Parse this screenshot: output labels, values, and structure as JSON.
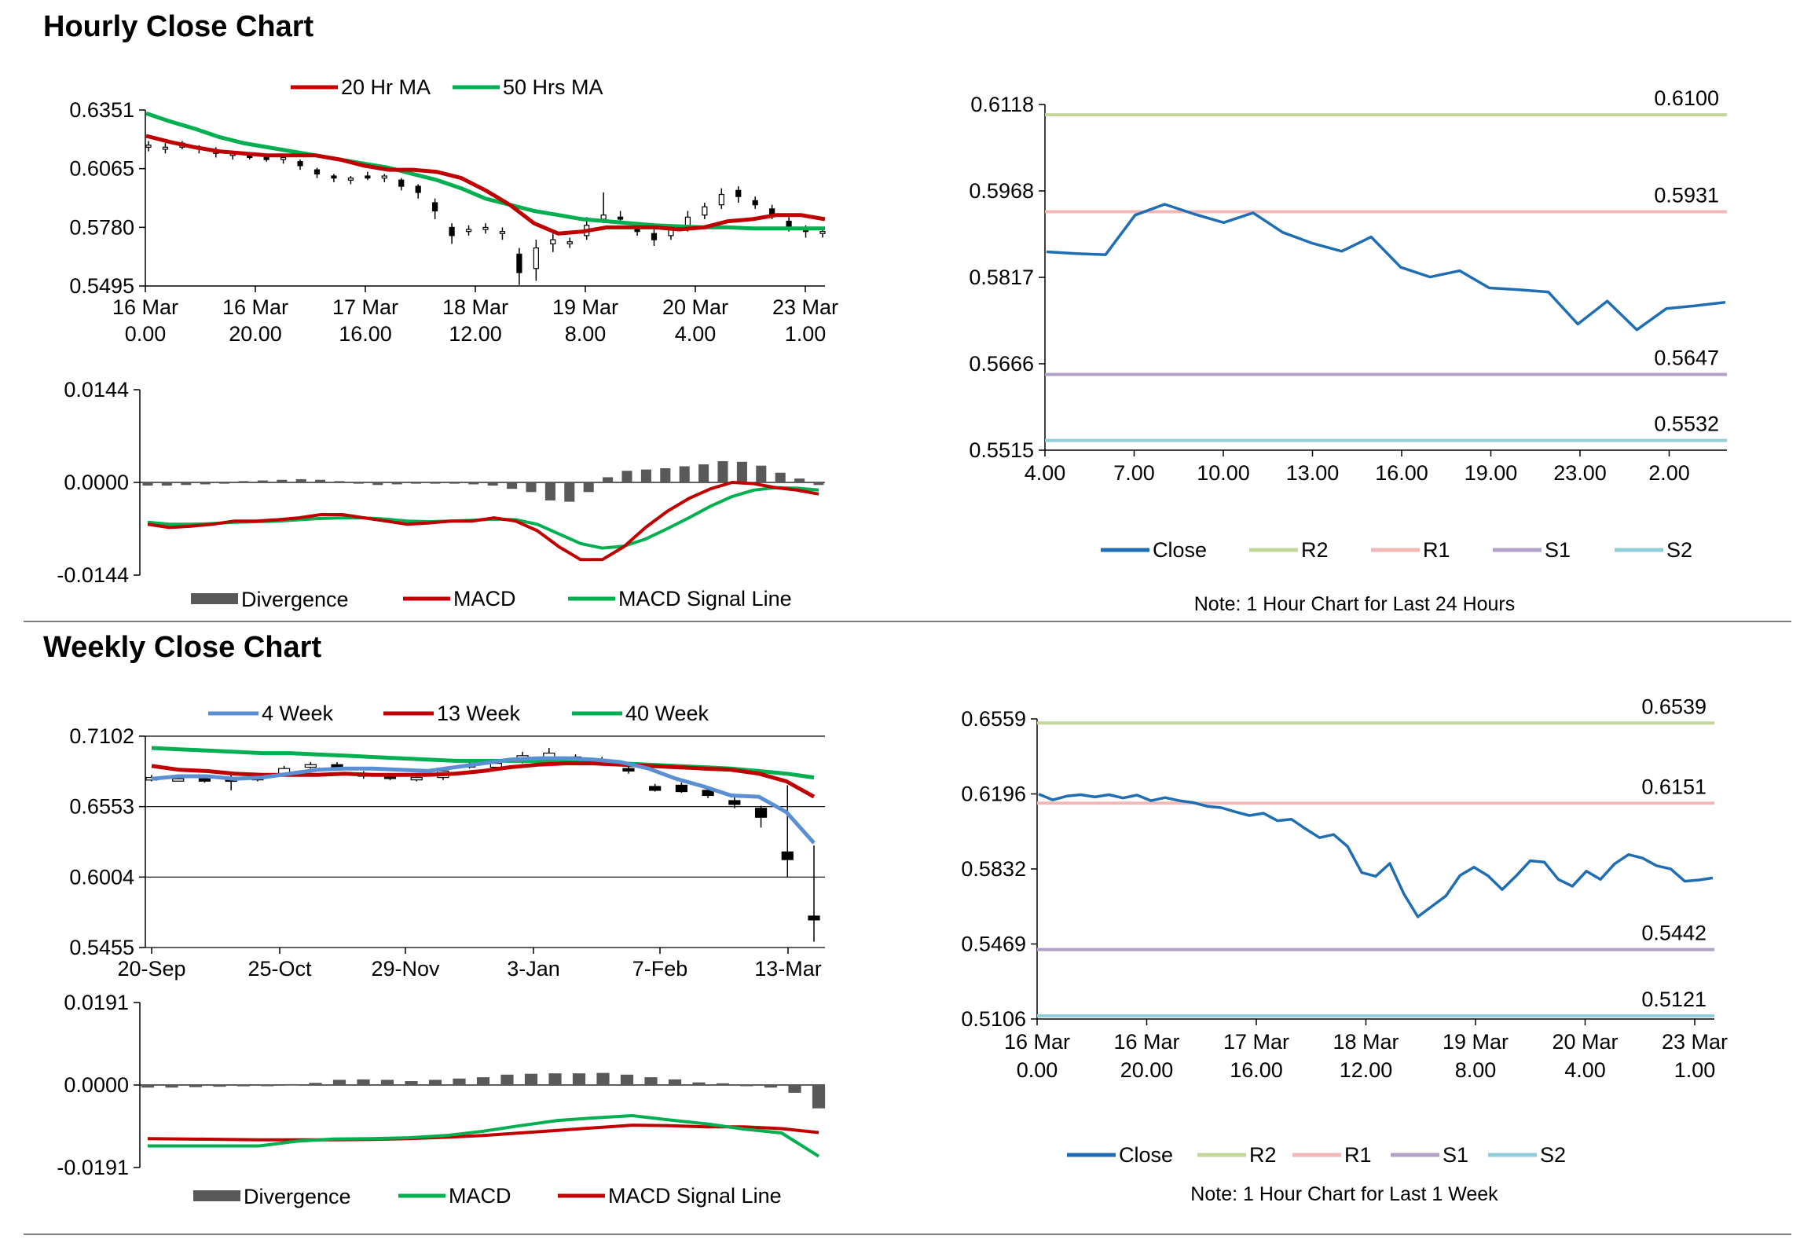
{
  "page": {
    "hourly_title": "Hourly Close Chart",
    "weekly_title": "Weekly Close Chart"
  },
  "chart_data": [
    {
      "id": "hourly_price",
      "type": "candlestick",
      "title": "Hourly Close Chart",
      "ylim": [
        0.5495,
        0.6351
      ],
      "yticks": [
        "0.6351",
        "0.6065",
        "0.5780",
        "0.5495"
      ],
      "xticks": [
        [
          "16 Mar",
          "0.00"
        ],
        [
          "16 Mar",
          "20.00"
        ],
        [
          "17 Mar",
          "16.00"
        ],
        [
          "18 Mar",
          "12.00"
        ],
        [
          "19 Mar",
          "8.00"
        ],
        [
          "20 Mar",
          "4.00"
        ],
        [
          "23 Mar",
          "1.00"
        ]
      ],
      "legend": [
        "20 Hr MA",
        "50 Hrs MA"
      ],
      "colors": {
        "ma20": "#c00000",
        "ma50": "#00b050",
        "candle": "#000000"
      },
      "ma20": [
        0.6225,
        0.6195,
        0.617,
        0.615,
        0.614,
        0.613,
        0.613,
        0.613,
        0.611,
        0.608,
        0.606,
        0.606,
        0.605,
        0.602,
        0.596,
        0.589,
        0.58,
        0.575,
        0.576,
        0.578,
        0.578,
        0.578,
        0.577,
        0.578,
        0.581,
        0.582,
        0.584,
        0.584,
        0.582
      ],
      "ma50": [
        0.6335,
        0.6295,
        0.626,
        0.622,
        0.619,
        0.617,
        0.615,
        0.613,
        0.611,
        0.609,
        0.607,
        0.604,
        0.601,
        0.597,
        0.592,
        0.589,
        0.586,
        0.584,
        0.582,
        0.581,
        0.58,
        0.579,
        0.5785,
        0.578,
        0.578,
        0.5775,
        0.5775,
        0.5775,
        0.5775
      ],
      "candles": [
        [
          0.617,
          0.618,
          0.62,
          0.615
        ],
        [
          0.616,
          0.617,
          0.619,
          0.614
        ],
        [
          0.617,
          0.619,
          0.62,
          0.616
        ],
        [
          0.616,
          0.617,
          0.618,
          0.614
        ],
        [
          0.614,
          0.615,
          0.617,
          0.612
        ],
        [
          0.613,
          0.614,
          0.615,
          0.611
        ],
        [
          0.613,
          0.612,
          0.614,
          0.611
        ],
        [
          0.612,
          0.611,
          0.613,
          0.61
        ],
        [
          0.611,
          0.612,
          0.613,
          0.609
        ],
        [
          0.61,
          0.608,
          0.611,
          0.606
        ],
        [
          0.606,
          0.604,
          0.607,
          0.602
        ],
        [
          0.603,
          0.602,
          0.604,
          0.6
        ],
        [
          0.601,
          0.602,
          0.603,
          0.599
        ],
        [
          0.603,
          0.602,
          0.605,
          0.601
        ],
        [
          0.602,
          0.603,
          0.604,
          0.6
        ],
        [
          0.601,
          0.598,
          0.602,
          0.596
        ],
        [
          0.598,
          0.595,
          0.599,
          0.592
        ],
        [
          0.59,
          0.586,
          0.592,
          0.582
        ],
        [
          0.578,
          0.574,
          0.58,
          0.57
        ],
        [
          0.576,
          0.577,
          0.579,
          0.574
        ],
        [
          0.577,
          0.578,
          0.58,
          0.575
        ],
        [
          0.575,
          0.576,
          0.578,
          0.572
        ],
        [
          0.565,
          0.556,
          0.568,
          0.55
        ],
        [
          0.558,
          0.568,
          0.572,
          0.552
        ],
        [
          0.57,
          0.572,
          0.575,
          0.566
        ],
        [
          0.57,
          0.571,
          0.573,
          0.568
        ],
        [
          0.574,
          0.579,
          0.583,
          0.572
        ],
        [
          0.582,
          0.584,
          0.595,
          0.58
        ],
        [
          0.583,
          0.582,
          0.586,
          0.58
        ],
        [
          0.578,
          0.576,
          0.58,
          0.574
        ],
        [
          0.575,
          0.572,
          0.577,
          0.569
        ],
        [
          0.574,
          0.577,
          0.579,
          0.572
        ],
        [
          0.578,
          0.583,
          0.586,
          0.576
        ],
        [
          0.584,
          0.588,
          0.59,
          0.582
        ],
        [
          0.589,
          0.594,
          0.597,
          0.587
        ],
        [
          0.596,
          0.593,
          0.598,
          0.59
        ],
        [
          0.591,
          0.589,
          0.593,
          0.587
        ],
        [
          0.587,
          0.584,
          0.589,
          0.582
        ],
        [
          0.581,
          0.578,
          0.583,
          0.576
        ],
        [
          0.577,
          0.576,
          0.579,
          0.573
        ],
        [
          0.575,
          0.576,
          0.577,
          0.573
        ]
      ]
    },
    {
      "id": "hourly_macd",
      "type": "macd",
      "ylim": [
        -0.0144,
        0.0144
      ],
      "yticks": [
        "0.0144",
        "0.0000",
        "-0.0144"
      ],
      "legend": [
        "Divergence",
        "MACD",
        "MACD Signal Line"
      ],
      "colors": {
        "divergence": "#595959",
        "macd": "#c00000",
        "signal": "#00b050"
      },
      "macd": [
        -0.0065,
        -0.007,
        -0.0068,
        -0.0065,
        -0.006,
        -0.006,
        -0.0058,
        -0.0055,
        -0.005,
        -0.005,
        -0.0055,
        -0.006,
        -0.0065,
        -0.0063,
        -0.006,
        -0.006,
        -0.0055,
        -0.006,
        -0.0075,
        -0.01,
        -0.012,
        -0.012,
        -0.01,
        -0.007,
        -0.0045,
        -0.0025,
        -0.001,
        0.0,
        -0.0002,
        -0.0008,
        -0.0012,
        -0.0018
      ],
      "signal": [
        -0.0062,
        -0.0065,
        -0.0065,
        -0.0064,
        -0.0062,
        -0.0061,
        -0.006,
        -0.0058,
        -0.0056,
        -0.0055,
        -0.0055,
        -0.0057,
        -0.006,
        -0.0061,
        -0.006,
        -0.0059,
        -0.0057,
        -0.0058,
        -0.0065,
        -0.008,
        -0.0095,
        -0.0102,
        -0.0099,
        -0.0088,
        -0.0072,
        -0.0055,
        -0.0037,
        -0.0022,
        -0.0012,
        -0.0008,
        -0.0009,
        -0.0012
      ],
      "divergence": [
        -0.0005,
        -0.0005,
        -0.0004,
        -0.0003,
        -0.0002,
        0.0002,
        0.0003,
        0.0004,
        0.0005,
        0.0004,
        0.0002,
        -0.0002,
        -0.0004,
        -0.0003,
        -0.0002,
        -0.0002,
        -0.0002,
        -0.0003,
        -0.0005,
        -0.001,
        -0.0015,
        -0.0028,
        -0.003,
        -0.0015,
        0.0008,
        0.0018,
        0.002,
        0.0022,
        0.0025,
        0.0028,
        0.0033,
        0.0032,
        0.0026,
        0.0015,
        0.0006,
        -0.0004
      ]
    },
    {
      "id": "hourly_levels",
      "type": "line",
      "ylim": [
        0.5515,
        0.6118
      ],
      "yticks": [
        "0.6118",
        "0.5968",
        "0.5817",
        "0.5666",
        "0.5515"
      ],
      "xticks": [
        "4.00",
        "7.00",
        "10.00",
        "13.00",
        "16.00",
        "19.00",
        "23.00",
        "2.00"
      ],
      "legend": [
        "Close",
        "R2",
        "R1",
        "S1",
        "S2"
      ],
      "levels": {
        "R2": 0.61,
        "R1": 0.5931,
        "S1": 0.5647,
        "S2": 0.5532
      },
      "level_labels": {
        "R2": "0.6100",
        "R1": "0.5931",
        "S1": "0.5647",
        "S2": "0.5532"
      },
      "colors": {
        "close": "#1f6eb4",
        "R2": "#c4d79b",
        "R1": "#f2b8b8",
        "S1": "#b3a2c7",
        "S2": "#92cddc"
      },
      "close": [
        0.5861,
        0.5858,
        0.5856,
        0.5925,
        0.5944,
        0.5927,
        0.5912,
        0.5929,
        0.5895,
        0.5876,
        0.5862,
        0.5887,
        0.5834,
        0.5817,
        0.5828,
        0.5798,
        0.5795,
        0.5791,
        0.5735,
        0.5775,
        0.5725,
        0.5762,
        0.5767,
        0.5773
      ],
      "note": "Note: 1 Hour Chart for Last 24 Hours"
    },
    {
      "id": "weekly_price",
      "type": "candlestick",
      "title": "Weekly Close Chart",
      "ylim": [
        0.5455,
        0.7102
      ],
      "yticks": [
        "0.7102",
        "0.6553",
        "0.6004",
        "0.5455"
      ],
      "xticks": [
        "20-Sep",
        "25-Oct",
        "29-Nov",
        "3-Jan",
        "7-Feb",
        "13-Mar"
      ],
      "legend": [
        "4 Week",
        "13 Week",
        "40 Week"
      ],
      "colors": {
        "w4": "#5b8fd4",
        "w13": "#c00000",
        "w40": "#00b050",
        "candle": "#000000"
      },
      "w4": [
        0.677,
        0.679,
        0.679,
        0.677,
        0.678,
        0.681,
        0.684,
        0.685,
        0.685,
        0.684,
        0.683,
        0.686,
        0.689,
        0.692,
        0.693,
        0.693,
        0.692,
        0.69,
        0.685,
        0.677,
        0.671,
        0.664,
        0.663,
        0.651,
        0.627
      ],
      "w13": [
        0.687,
        0.684,
        0.683,
        0.681,
        0.68,
        0.68,
        0.68,
        0.681,
        0.68,
        0.68,
        0.68,
        0.681,
        0.683,
        0.686,
        0.688,
        0.689,
        0.689,
        0.688,
        0.687,
        0.686,
        0.685,
        0.684,
        0.681,
        0.675,
        0.663
      ],
      "w40": [
        0.701,
        0.7,
        0.699,
        0.698,
        0.697,
        0.697,
        0.696,
        0.695,
        0.694,
        0.693,
        0.692,
        0.691,
        0.691,
        0.691,
        0.691,
        0.69,
        0.69,
        0.689,
        0.688,
        0.687,
        0.686,
        0.685,
        0.683,
        0.681,
        0.678
      ],
      "candles": [
        [
          0.676,
          0.678,
          0.68,
          0.675
        ],
        [
          0.677,
          0.677,
          0.679,
          0.675
        ],
        [
          0.677,
          0.676,
          0.678,
          0.674
        ],
        [
          0.678,
          0.675,
          0.68,
          0.668
        ],
        [
          0.678,
          0.677,
          0.68,
          0.675
        ],
        [
          0.681,
          0.685,
          0.687,
          0.679
        ],
        [
          0.686,
          0.688,
          0.69,
          0.685
        ],
        [
          0.688,
          0.686,
          0.69,
          0.684
        ],
        [
          0.681,
          0.679,
          0.683,
          0.677
        ],
        [
          0.679,
          0.678,
          0.681,
          0.676
        ],
        [
          0.677,
          0.678,
          0.679,
          0.675
        ],
        [
          0.678,
          0.683,
          0.685,
          0.676
        ],
        [
          0.687,
          0.688,
          0.691,
          0.685
        ],
        [
          0.686,
          0.689,
          0.692,
          0.684
        ],
        [
          0.691,
          0.695,
          0.698,
          0.689
        ],
        [
          0.693,
          0.697,
          0.701,
          0.69
        ],
        [
          0.694,
          0.694,
          0.696,
          0.69
        ],
        [
          0.692,
          0.691,
          0.694,
          0.689
        ],
        [
          0.685,
          0.683,
          0.687,
          0.681
        ],
        [
          0.671,
          0.668,
          0.673,
          0.667
        ],
        [
          0.672,
          0.667,
          0.674,
          0.666
        ],
        [
          0.668,
          0.664,
          0.671,
          0.662
        ],
        [
          0.66,
          0.657,
          0.665,
          0.654
        ],
        [
          0.654,
          0.647,
          0.656,
          0.639
        ],
        [
          0.62,
          0.614,
          0.672,
          0.6
        ],
        [
          0.57,
          0.567,
          0.625,
          0.55
        ]
      ]
    },
    {
      "id": "weekly_macd",
      "type": "macd",
      "ylim": [
        -0.0191,
        0.0191
      ],
      "yticks": [
        "0.0191",
        "0.0000",
        "-0.0191"
      ],
      "legend": [
        "Divergence",
        "MACD",
        "MACD Signal Line"
      ],
      "colors": {
        "divergence": "#595959",
        "macd": "#00b050",
        "signal": "#c00000"
      },
      "macd": [
        -0.0141,
        -0.0141,
        -0.0141,
        -0.0141,
        -0.013,
        -0.0125,
        -0.0124,
        -0.0122,
        -0.0117,
        -0.0107,
        -0.0094,
        -0.0082,
        -0.0076,
        -0.0071,
        -0.0081,
        -0.009,
        -0.0102,
        -0.0111,
        -0.0165
      ],
      "signal": [
        -0.0124,
        -0.0125,
        -0.0126,
        -0.0127,
        -0.0127,
        -0.0127,
        -0.0126,
        -0.0124,
        -0.0121,
        -0.0117,
        -0.0111,
        -0.0105,
        -0.0099,
        -0.0093,
        -0.0094,
        -0.0097,
        -0.0097,
        -0.0101,
        -0.011
      ],
      "divergence": [
        -0.0006,
        -0.0006,
        -0.0005,
        -0.0004,
        -0.0003,
        -0.0002,
        0.0002,
        0.0005,
        0.0012,
        0.0013,
        0.0012,
        0.0009,
        0.0012,
        0.0015,
        0.0018,
        0.0024,
        0.0026,
        0.0027,
        0.0027,
        0.0028,
        0.0024,
        0.0018,
        0.0013,
        0.0006,
        0.0004,
        -0.0002,
        -0.0006,
        -0.0018,
        -0.0054
      ],
      "note": ""
    },
    {
      "id": "weekly_levels",
      "type": "line",
      "ylim": [
        0.5106,
        0.6559
      ],
      "yticks": [
        "0.6559",
        "0.6196",
        "0.5832",
        "0.5469",
        "0.5106"
      ],
      "xticks": [
        [
          "16 Mar",
          "0.00"
        ],
        [
          "16 Mar",
          "20.00"
        ],
        [
          "17 Mar",
          "16.00"
        ],
        [
          "18 Mar",
          "12.00"
        ],
        [
          "19 Mar",
          "8.00"
        ],
        [
          "20 Mar",
          "4.00"
        ],
        [
          "23 Mar",
          "1.00"
        ]
      ],
      "legend": [
        "Close",
        "R2",
        "R1",
        "S1",
        "S2"
      ],
      "levels": {
        "R2": 0.6539,
        "R1": 0.6151,
        "S1": 0.5442,
        "S2": 0.5121
      },
      "level_labels": {
        "R2": "0.6539",
        "R1": "0.6151",
        "S1": "0.5442",
        "S2": "0.5121"
      },
      "colors": {
        "close": "#1f6eb4",
        "R2": "#c4d79b",
        "R1": "#f2b8b8",
        "S1": "#b3a2c7",
        "S2": "#92cddc"
      },
      "close": [
        0.6195,
        0.6167,
        0.6185,
        0.6192,
        0.6181,
        0.6192,
        0.6176,
        0.619,
        0.6163,
        0.6178,
        0.6163,
        0.6154,
        0.6136,
        0.6129,
        0.6109,
        0.6091,
        0.6102,
        0.6066,
        0.6073,
        0.6027,
        0.5984,
        0.5999,
        0.5941,
        0.5815,
        0.5797,
        0.5859,
        0.5712,
        0.5601,
        0.5652,
        0.5702,
        0.5801,
        0.5841,
        0.5799,
        0.5733,
        0.5799,
        0.5872,
        0.5866,
        0.5782,
        0.5749,
        0.5822,
        0.5782,
        0.5857,
        0.5902,
        0.5885,
        0.5848,
        0.5833,
        0.5773,
        0.5779,
        0.5789
      ],
      "note": "Note: 1 Hour Chart for Last 1 Week"
    }
  ]
}
